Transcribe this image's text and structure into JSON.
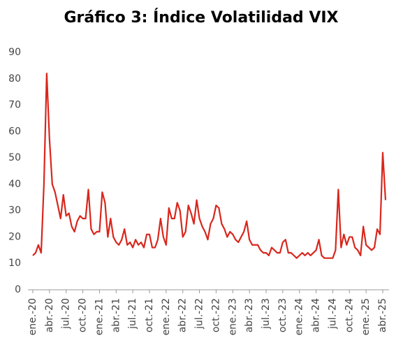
{
  "chart_data": {
    "type": "line",
    "title": "Gráfico 3: Índice Volatilidad VIX",
    "categories": [
      "ene.-20",
      null,
      null,
      null,
      null,
      null,
      "abr.-20",
      null,
      null,
      null,
      null,
      null,
      "jul.-20",
      null,
      null,
      null,
      null,
      null,
      "oct.-20",
      null,
      null,
      null,
      null,
      null,
      "ene.-21",
      null,
      null,
      null,
      null,
      null,
      "abr.-21",
      null,
      null,
      null,
      null,
      null,
      "jul.-21",
      null,
      null,
      null,
      null,
      null,
      "oct.-21",
      null,
      null,
      null,
      null,
      null,
      "ene.-22",
      null,
      null,
      null,
      null,
      null,
      "abr.-22",
      null,
      null,
      null,
      null,
      null,
      "jul.-22",
      null,
      null,
      null,
      null,
      null,
      "oct.-22",
      null,
      null,
      null,
      null,
      null,
      "ene.-23",
      null,
      null,
      null,
      null,
      null,
      "abr.-23",
      null,
      null,
      null,
      null,
      null,
      "jul.-23",
      null,
      null,
      null,
      null,
      null,
      "oct.-23",
      null,
      null,
      null,
      null,
      null,
      "ene.-24",
      null,
      null,
      null,
      null,
      null,
      "abr.-24",
      null,
      null,
      null,
      null,
      null,
      "jul.-24",
      null,
      null,
      null,
      null,
      null,
      "oct.-24",
      null,
      null,
      null,
      null,
      null,
      "ene.-25",
      null,
      null,
      null,
      null,
      null,
      "abr.-25",
      null
    ],
    "series": [
      {
        "color": "#d9261c",
        "values": [
          13,
          14,
          17,
          14,
          40,
          82,
          57,
          40,
          37,
          32,
          27,
          36,
          28,
          29,
          24,
          22,
          26,
          28,
          27,
          27,
          38,
          23,
          21,
          22,
          22,
          37,
          33,
          20,
          27,
          20,
          18,
          17,
          19,
          23,
          17,
          18,
          16,
          19,
          17,
          18,
          16,
          21,
          21,
          16,
          16,
          19,
          27,
          20,
          17,
          31,
          27,
          27,
          33,
          30,
          20,
          22,
          32,
          29,
          25,
          34,
          27,
          24,
          22,
          19,
          25,
          27,
          32,
          31,
          25,
          23,
          20,
          22,
          21,
          19,
          18,
          20,
          22,
          26,
          19,
          17,
          17,
          17,
          15,
          14,
          14,
          13,
          16,
          15,
          14,
          14,
          18,
          19,
          14,
          14,
          13,
          12,
          13,
          14,
          13,
          14,
          13,
          14,
          15,
          19,
          13,
          12,
          12,
          12,
          12,
          15,
          38,
          16,
          21,
          17,
          20,
          20,
          16,
          15,
          13,
          24,
          17,
          16,
          15,
          16,
          23,
          21,
          52,
          34
        ]
      }
    ],
    "ylim": [
      0,
      90
    ],
    "yticks": [
      0,
      10,
      20,
      30,
      40,
      50,
      60,
      70,
      80,
      90
    ]
  }
}
